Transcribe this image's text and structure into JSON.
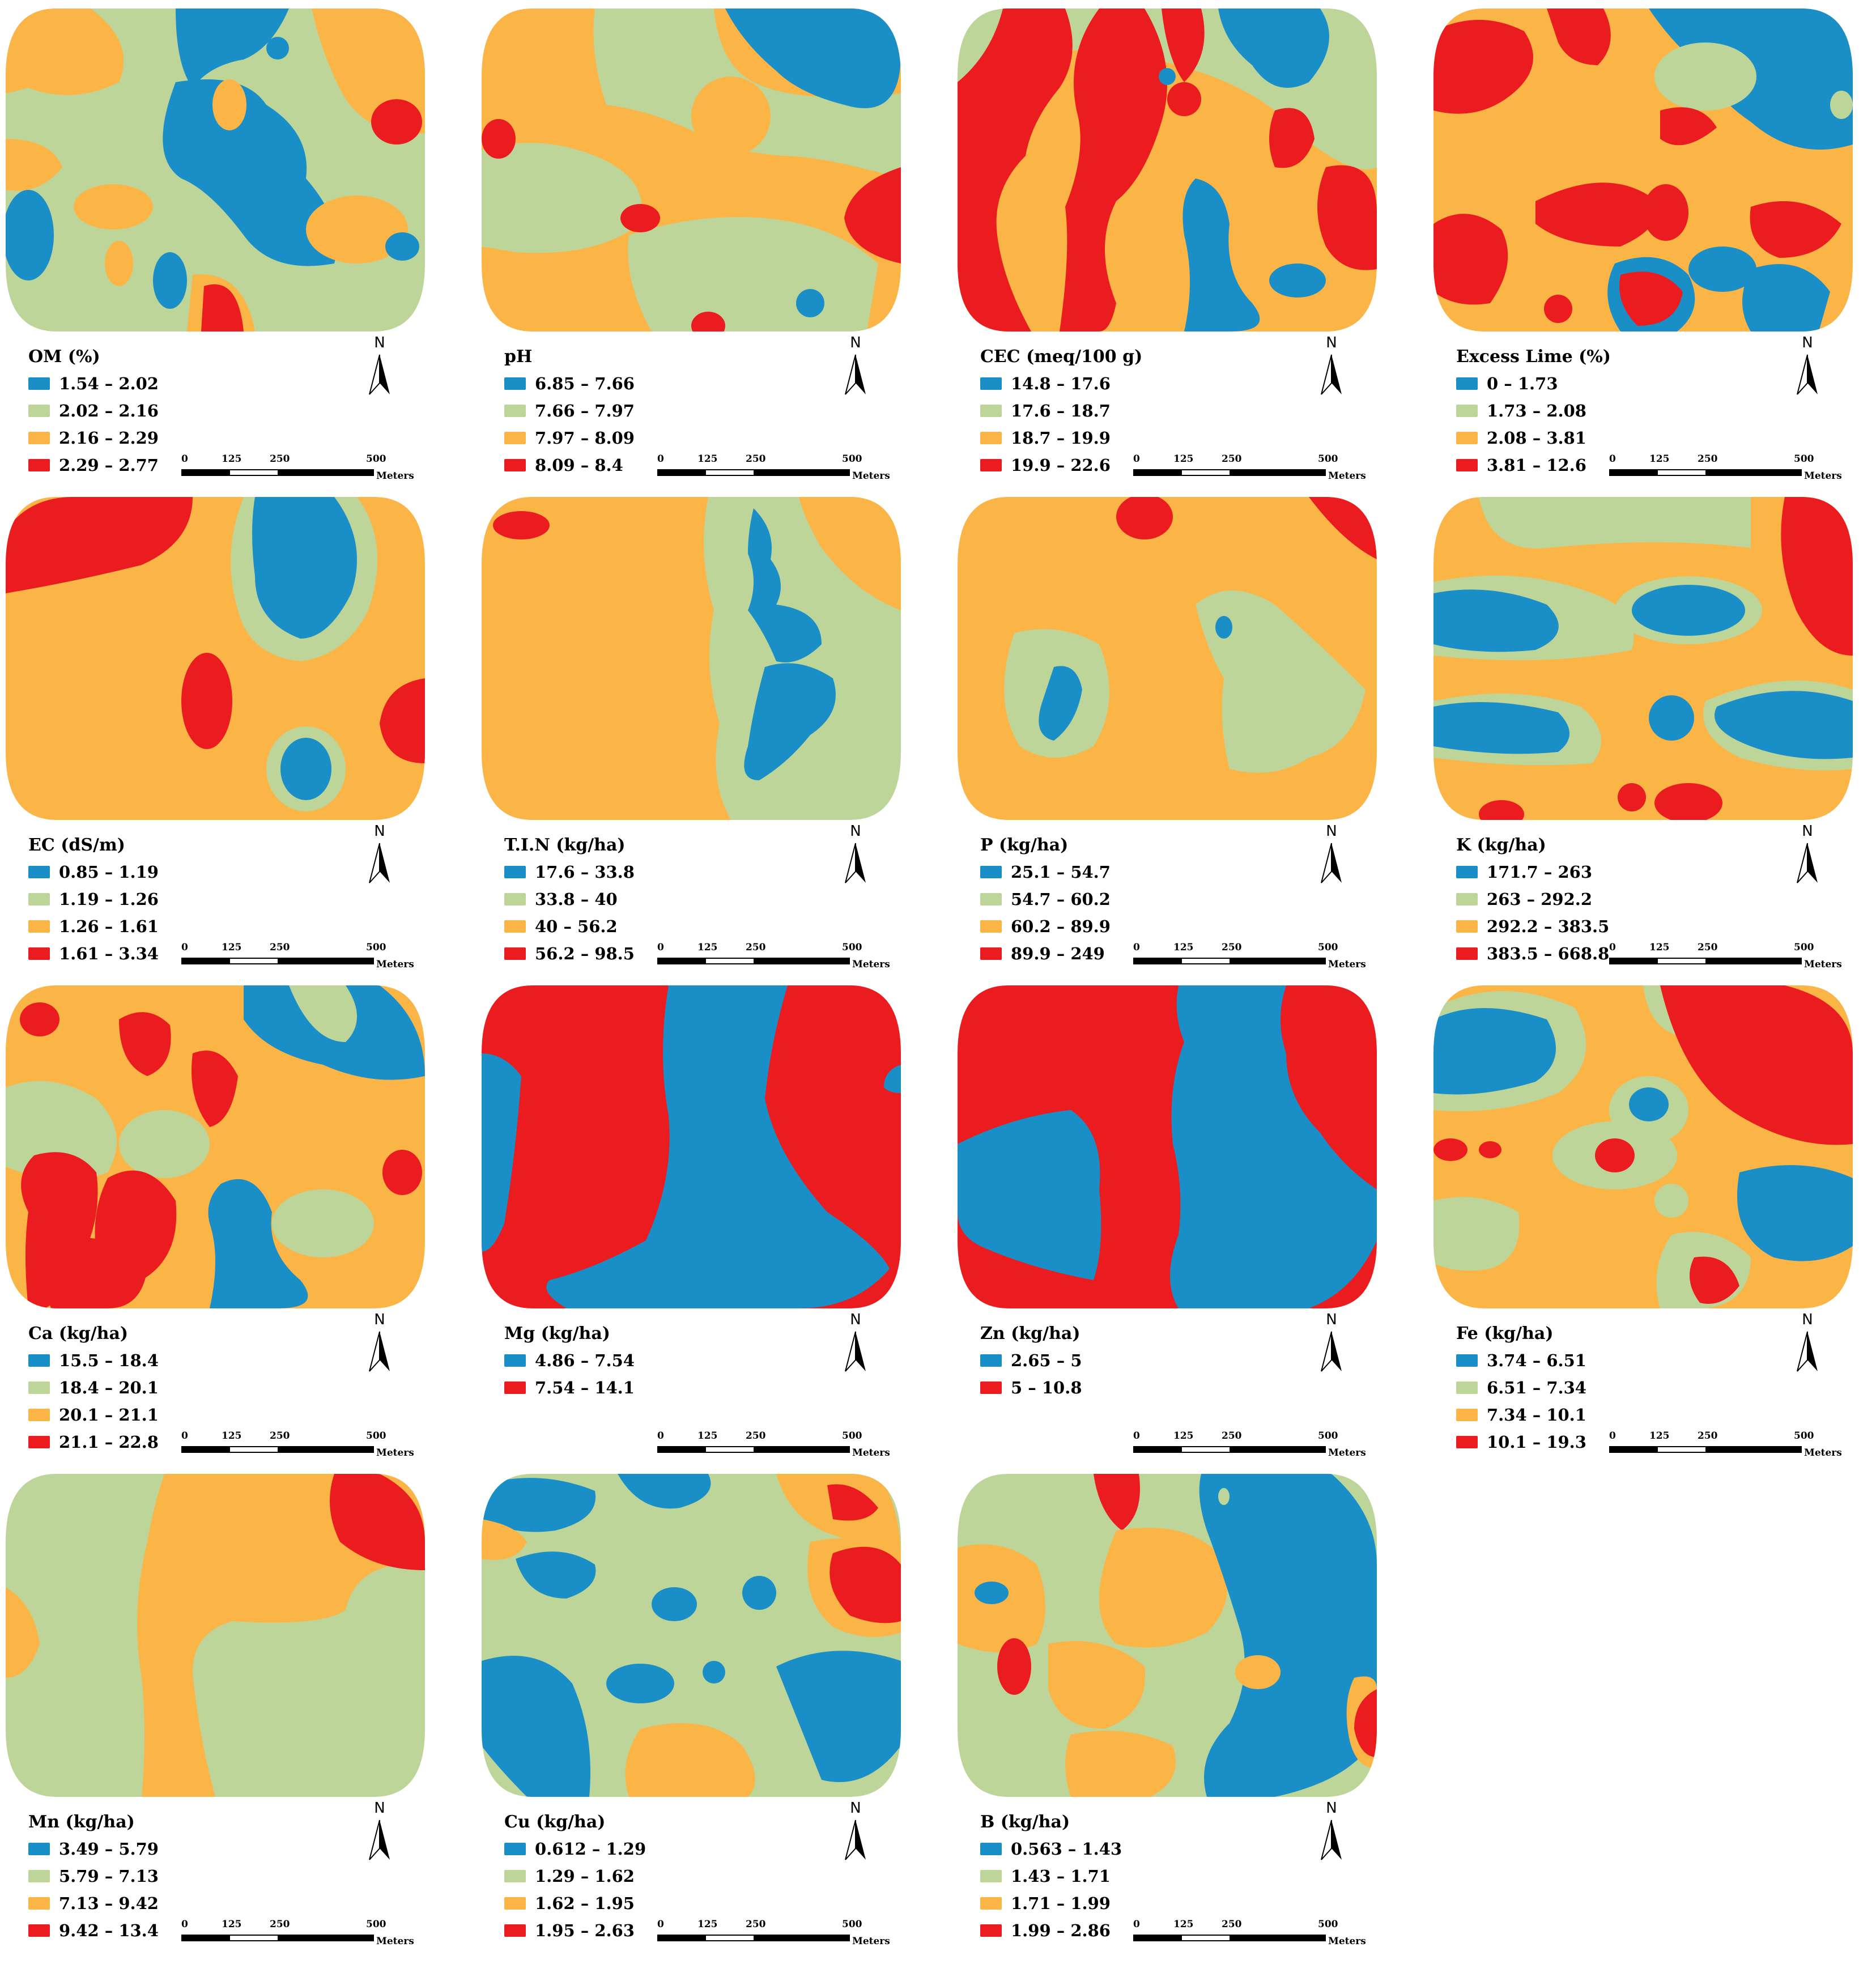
{
  "colors": {
    "blue": "#1a8fc7",
    "green": "#bed59a",
    "orange": "#fbb547",
    "red": "#ea1c1f"
  },
  "north_label": "N",
  "scale": {
    "ticks": [
      "0",
      "125",
      "250",
      "500"
    ],
    "unit": "Meters"
  },
  "maps": [
    {
      "title": "OM (%)",
      "classes": [
        {
          "label": "1.54 – 2.02",
          "color": "blue"
        },
        {
          "label": "2.02 – 2.16",
          "color": "green"
        },
        {
          "label": "2.16 – 2.29",
          "color": "orange"
        },
        {
          "label": "2.29 – 2.77",
          "color": "red"
        }
      ]
    },
    {
      "title": "pH",
      "classes": [
        {
          "label": "6.85 – 7.66",
          "color": "blue"
        },
        {
          "label": "7.66 – 7.97",
          "color": "green"
        },
        {
          "label": "7.97 – 8.09",
          "color": "orange"
        },
        {
          "label": "8.09 – 8.4",
          "color": "red"
        }
      ]
    },
    {
      "title": "CEC (meq/100 g)",
      "classes": [
        {
          "label": "14.8 – 17.6",
          "color": "blue"
        },
        {
          "label": "17.6 – 18.7",
          "color": "green"
        },
        {
          "label": "18.7 – 19.9",
          "color": "orange"
        },
        {
          "label": "19.9 – 22.6",
          "color": "red"
        }
      ]
    },
    {
      "title": "Excess Lime (%)",
      "classes": [
        {
          "label": "0 – 1.73",
          "color": "blue"
        },
        {
          "label": "1.73 – 2.08",
          "color": "green"
        },
        {
          "label": "2.08 – 3.81",
          "color": "orange"
        },
        {
          "label": "3.81 – 12.6",
          "color": "red"
        }
      ]
    },
    {
      "title": "EC (dS/m)",
      "classes": [
        {
          "label": "0.85 – 1.19",
          "color": "blue"
        },
        {
          "label": "1.19 – 1.26",
          "color": "green"
        },
        {
          "label": "1.26 – 1.61",
          "color": "orange"
        },
        {
          "label": "1.61 – 3.34",
          "color": "red"
        }
      ]
    },
    {
      "title": "T.I.N (kg/ha)",
      "classes": [
        {
          "label": "17.6 – 33.8",
          "color": "blue"
        },
        {
          "label": "33.8 – 40",
          "color": "green"
        },
        {
          "label": "40 – 56.2",
          "color": "orange"
        },
        {
          "label": "56.2 – 98.5",
          "color": "red"
        }
      ]
    },
    {
      "title": "P (kg/ha)",
      "classes": [
        {
          "label": "25.1 – 54.7",
          "color": "blue"
        },
        {
          "label": "54.7 – 60.2",
          "color": "green"
        },
        {
          "label": "60.2 – 89.9",
          "color": "orange"
        },
        {
          "label": "89.9 – 249",
          "color": "red"
        }
      ]
    },
    {
      "title": "K (kg/ha)",
      "classes": [
        {
          "label": "171.7 – 263",
          "color": "blue"
        },
        {
          "label": "263 – 292.2",
          "color": "green"
        },
        {
          "label": "292.2 – 383.5",
          "color": "orange"
        },
        {
          "label": "383.5 – 668.8",
          "color": "red"
        }
      ]
    },
    {
      "title": "Ca (kg/ha)",
      "classes": [
        {
          "label": "15.5 – 18.4",
          "color": "blue"
        },
        {
          "label": "18.4 – 20.1",
          "color": "green"
        },
        {
          "label": "20.1 – 21.1",
          "color": "orange"
        },
        {
          "label": "21.1 – 22.8",
          "color": "red"
        }
      ]
    },
    {
      "title": "Mg (kg/ha)",
      "classes": [
        {
          "label": "4.86 – 7.54",
          "color": "blue"
        },
        {
          "label": "7.54 – 14.1",
          "color": "red"
        }
      ]
    },
    {
      "title": "Zn (kg/ha)",
      "classes": [
        {
          "label": "2.65 – 5",
          "color": "blue"
        },
        {
          "label": "5 – 10.8",
          "color": "red"
        }
      ]
    },
    {
      "title": "Fe (kg/ha)",
      "classes": [
        {
          "label": "3.74 – 6.51",
          "color": "blue"
        },
        {
          "label": "6.51 – 7.34",
          "color": "green"
        },
        {
          "label": "7.34 – 10.1",
          "color": "orange"
        },
        {
          "label": "10.1 – 19.3",
          "color": "red"
        }
      ]
    },
    {
      "title": "Mn (kg/ha)",
      "classes": [
        {
          "label": "3.49 – 5.79",
          "color": "blue"
        },
        {
          "label": "5.79 – 7.13",
          "color": "green"
        },
        {
          "label": "7.13 – 9.42",
          "color": "orange"
        },
        {
          "label": "9.42 – 13.4",
          "color": "red"
        }
      ]
    },
    {
      "title": "Cu (kg/ha)",
      "classes": [
        {
          "label": "0.612 – 1.29",
          "color": "blue"
        },
        {
          "label": "1.29 – 1.62",
          "color": "green"
        },
        {
          "label": "1.62 – 1.95",
          "color": "orange"
        },
        {
          "label": "1.95 – 2.63",
          "color": "red"
        }
      ]
    },
    {
      "title": "B (kg/ha)",
      "classes": [
        {
          "label": "0.563 – 1.43",
          "color": "blue"
        },
        {
          "label": "1.43 – 1.71",
          "color": "green"
        },
        {
          "label": "1.71 – 1.99",
          "color": "orange"
        },
        {
          "label": "1.99 – 2.86",
          "color": "red"
        }
      ]
    }
  ]
}
